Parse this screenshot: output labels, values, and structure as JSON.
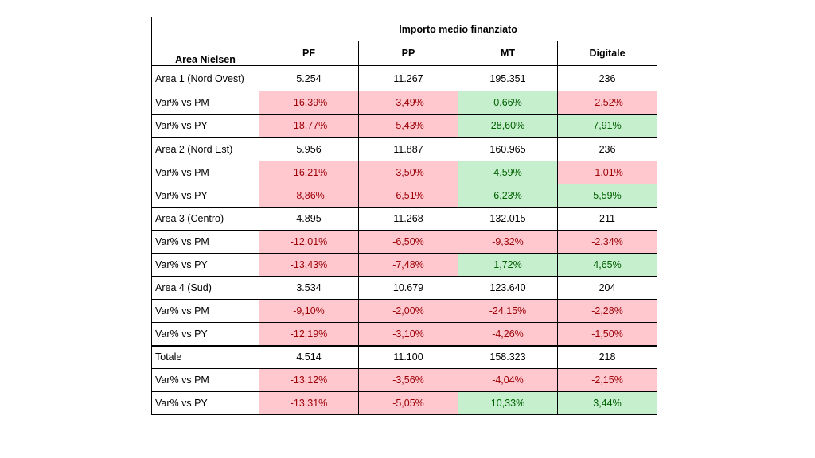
{
  "header": {
    "corner_label": "Area Nielsen",
    "group_title": "Importo medio finanziato",
    "columns": [
      "PF",
      "PP",
      "MT",
      "Digitale"
    ]
  },
  "groups": [
    {
      "area": "Area 1 (Nord Ovest)",
      "values": [
        "5.254",
        "11.267",
        "195.351",
        "236"
      ],
      "rows": [
        {
          "label": "Var% vs PM",
          "cells": [
            {
              "v": "-16,39%",
              "s": "neg"
            },
            {
              "v": "-3,49%",
              "s": "neg"
            },
            {
              "v": "0,66%",
              "s": "pos"
            },
            {
              "v": "-2,52%",
              "s": "neg"
            }
          ]
        },
        {
          "label": "Var% vs PY",
          "cells": [
            {
              "v": "-18,77%",
              "s": "neg"
            },
            {
              "v": "-5,43%",
              "s": "neg"
            },
            {
              "v": "28,60%",
              "s": "pos"
            },
            {
              "v": "7,91%",
              "s": "pos"
            }
          ]
        }
      ]
    },
    {
      "area": "Area 2 (Nord Est)",
      "values": [
        "5.956",
        "11.887",
        "160.965",
        "236"
      ],
      "rows": [
        {
          "label": "Var% vs PM",
          "cells": [
            {
              "v": "-16,21%",
              "s": "neg"
            },
            {
              "v": "-3,50%",
              "s": "neg"
            },
            {
              "v": "4,59%",
              "s": "pos"
            },
            {
              "v": "-1,01%",
              "s": "neg"
            }
          ]
        },
        {
          "label": "Var% vs PY",
          "cells": [
            {
              "v": "-8,86%",
              "s": "neg"
            },
            {
              "v": "-6,51%",
              "s": "neg"
            },
            {
              "v": "6,23%",
              "s": "pos"
            },
            {
              "v": "5,59%",
              "s": "pos"
            }
          ]
        }
      ]
    },
    {
      "area": "Area 3 (Centro)",
      "values": [
        "4.895",
        "11.268",
        "132.015",
        "211"
      ],
      "rows": [
        {
          "label": "Var% vs PM",
          "cells": [
            {
              "v": "-12,01%",
              "s": "neg"
            },
            {
              "v": "-6,50%",
              "s": "neg"
            },
            {
              "v": "-9,32%",
              "s": "neg"
            },
            {
              "v": "-2,34%",
              "s": "neg"
            }
          ]
        },
        {
          "label": "Var% vs PY",
          "cells": [
            {
              "v": "-13,43%",
              "s": "neg"
            },
            {
              "v": "-7,48%",
              "s": "neg"
            },
            {
              "v": "1,72%",
              "s": "pos"
            },
            {
              "v": "4,65%",
              "s": "pos"
            }
          ]
        }
      ]
    },
    {
      "area": "Area 4 (Sud)",
      "values": [
        "3.534",
        "10.679",
        "123.640",
        "204"
      ],
      "rows": [
        {
          "label": "Var% vs PM",
          "cells": [
            {
              "v": "-9,10%",
              "s": "neg"
            },
            {
              "v": "-2,00%",
              "s": "neg"
            },
            {
              "v": "-24,15%",
              "s": "neg"
            },
            {
              "v": "-2,28%",
              "s": "neg"
            }
          ]
        },
        {
          "label": "Var% vs PY",
          "cells": [
            {
              "v": "-12,19%",
              "s": "neg"
            },
            {
              "v": "-3,10%",
              "s": "neg"
            },
            {
              "v": "-4,26%",
              "s": "neg"
            },
            {
              "v": "-1,50%",
              "s": "neg"
            }
          ]
        }
      ]
    },
    {
      "area": "Totale",
      "values": [
        "4.514",
        "11.100",
        "158.323",
        "218"
      ],
      "rows": [
        {
          "label": "Var% vs PM",
          "cells": [
            {
              "v": "-13,12%",
              "s": "neg"
            },
            {
              "v": "-3,56%",
              "s": "neg"
            },
            {
              "v": "-4,04%",
              "s": "neg"
            },
            {
              "v": "-2,15%",
              "s": "neg"
            }
          ]
        },
        {
          "label": "Var% vs PY",
          "cells": [
            {
              "v": "-13,31%",
              "s": "neg"
            },
            {
              "v": "-5,05%",
              "s": "neg"
            },
            {
              "v": "10,33%",
              "s": "pos"
            },
            {
              "v": "3,44%",
              "s": "pos"
            }
          ]
        }
      ]
    }
  ],
  "colors": {
    "positive_fill": "#c6efce",
    "positive_text": "#006100",
    "negative_fill": "#ffc7ce",
    "negative_text": "#9c0006"
  }
}
